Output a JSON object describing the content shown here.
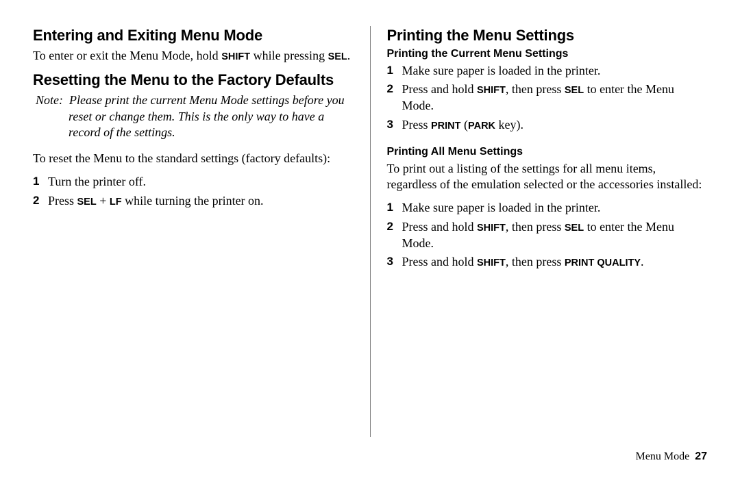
{
  "left": {
    "h1": "Entering and Exiting Menu Mode",
    "p1a": "To enter or exit the Menu Mode, hold ",
    "k_shift": "SHIFT",
    "p1b": " while pressing ",
    "k_sel": "SEL",
    "p1c": ".",
    "h2": "Resetting the Menu to the Factory Defaults",
    "note_label": "Note:  ",
    "note_text": "Please print the current Menu Mode settings before you reset or change them. This is the only way to have a record of the settings.",
    "p2": "To reset the Menu to the standard settings (factory defaults):",
    "s1": "Turn the printer off.",
    "s2a": "Press ",
    "k_sel2": "SEL",
    "s2plus": " + ",
    "k_lf": "LF",
    "s2b": " while turning the printer on."
  },
  "right": {
    "h1": "Printing the Menu Settings",
    "sub1": "Printing the Current Menu Settings",
    "c1": "Make sure paper is loaded in the printer.",
    "c2a": "Press and hold ",
    "k_shift": "SHIFT",
    "c2b": ", then press ",
    "k_sel": "SEL",
    "c2c": " to enter the Menu Mode.",
    "c3a": "Press ",
    "k_print": "PRINT",
    "c3mid": " (",
    "k_park": "PARK",
    "c3b": " key).",
    "sub2": "Printing All Menu Settings",
    "p2": "To print out a listing of the settings for all menu items, regardless of the emulation selected or the accessories installed:",
    "a1": "Make sure paper is loaded in the printer.",
    "a2a": "Press and hold ",
    "a2b": ", then press ",
    "a2c": " to enter the Menu Mode.",
    "a3a": "Press and hold ",
    "a3b": ", then press ",
    "k_pq": "PRINT QUALITY",
    "a3c": "."
  },
  "footer": {
    "section": "Menu Mode",
    "page": "27"
  }
}
